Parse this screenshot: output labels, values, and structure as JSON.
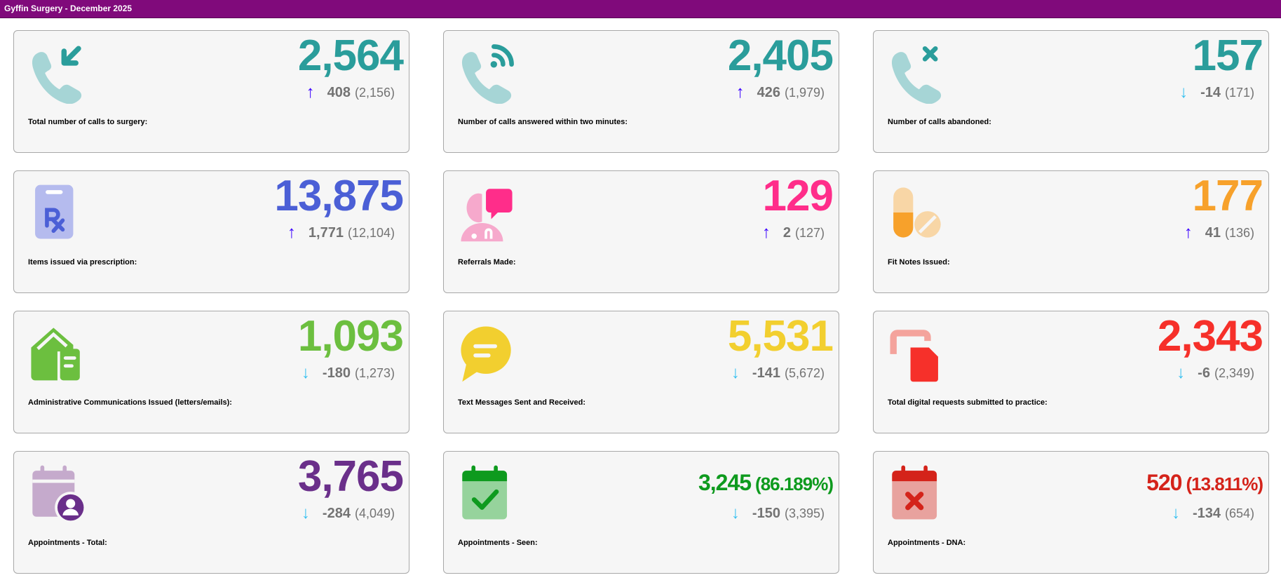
{
  "header": {
    "title": "Gyffin Surgery - December 2025"
  },
  "colors": {
    "up_arrow": "#3a00ff",
    "down_arrow": "#36c0f0",
    "header_bg": "#800a7b"
  },
  "cards": [
    {
      "id": "total-calls",
      "icon": "phone-incoming-icon",
      "value": "2,564",
      "direction": "up",
      "arrow": "↑",
      "change": "408",
      "previous": "(2,156)",
      "label": "Total number of calls to surgery:",
      "color": "#2a9d9b",
      "light": "#a6d5d6"
    },
    {
      "id": "calls-answered",
      "icon": "phone-answered-icon",
      "value": "2,405",
      "direction": "up",
      "arrow": "↑",
      "change": "426",
      "previous": "(1,979)",
      "label": "Number of calls answered within two minutes:",
      "color": "#2a9d9b",
      "light": "#a6d5d6"
    },
    {
      "id": "calls-abandoned",
      "icon": "phone-missed-icon",
      "value": "157",
      "direction": "down",
      "arrow": "↓",
      "change": "-14",
      "previous": "(171)",
      "label": "Number of calls abandoned:",
      "color": "#2a9d9b",
      "light": "#a6d5d6"
    },
    {
      "id": "prescription-items",
      "icon": "prescription-icon",
      "value": "13,875",
      "direction": "up",
      "arrow": "↑",
      "change": "1,771",
      "previous": "(12,104)",
      "label": "Items issued via prescription:",
      "color": "#4b5fd6",
      "light": "#b5bbee"
    },
    {
      "id": "referrals",
      "icon": "doctor-chat-icon",
      "value": "129",
      "direction": "up",
      "arrow": "↑",
      "change": "2",
      "previous": "(127)",
      "label": "Referrals Made:",
      "color": "#ff2d8a",
      "light": "#f6a9cc"
    },
    {
      "id": "fit-notes",
      "icon": "pills-icon",
      "value": "177",
      "direction": "up",
      "arrow": "↑",
      "change": "41",
      "previous": "(136)",
      "label": "Fit Notes Issued:",
      "color": "#f7a12b",
      "light": "#f8d6a6"
    },
    {
      "id": "admin-comms",
      "icon": "mail-house-icon",
      "value": "1,093",
      "direction": "down",
      "arrow": "↓",
      "change": "-180",
      "previous": "(1,273)",
      "label": "Administrative Communications Issued (letters/emails):",
      "color": "#6cbf3f",
      "light": "#6cbf3f"
    },
    {
      "id": "text-messages",
      "icon": "chat-bubble-icon",
      "value": "5,531",
      "direction": "down",
      "arrow": "↓",
      "change": "-141",
      "previous": "(5,672)",
      "label": "Text Messages Sent and Received:",
      "color": "#f2cf2f",
      "light": "#f2cf2f"
    },
    {
      "id": "digital-requests",
      "icon": "digital-request-icon",
      "value": "2,343",
      "direction": "down",
      "arrow": "↓",
      "change": "-6",
      "previous": "(2,349)",
      "label": "Total digital requests submitted to practice:",
      "color": "#f6302a",
      "light": "#f4a39c"
    },
    {
      "id": "appointments-total",
      "icon": "calendar-user-icon",
      "value": "3,765",
      "direction": "down",
      "arrow": "↓",
      "change": "-284",
      "previous": "(4,049)",
      "label": "Appointments - Total:",
      "color": "#6a2f8a",
      "light": "#c5aacc"
    },
    {
      "id": "appointments-seen",
      "icon": "calendar-check-icon",
      "value": "3,245",
      "percent": "(86.189%)",
      "direction": "down",
      "arrow": "↓",
      "change": "-150",
      "previous": "(3,395)",
      "label": "Appointments - Seen:",
      "color": "#0e9a1e",
      "light": "#96d39c"
    },
    {
      "id": "appointments-dna",
      "icon": "calendar-x-icon",
      "value": "520",
      "percent": "(13.811%)",
      "direction": "down",
      "arrow": "↓",
      "change": "-134",
      "previous": "(654)",
      "label": "Appointments - DNA:",
      "color": "#d4231a",
      "light": "#e8a29e"
    }
  ]
}
